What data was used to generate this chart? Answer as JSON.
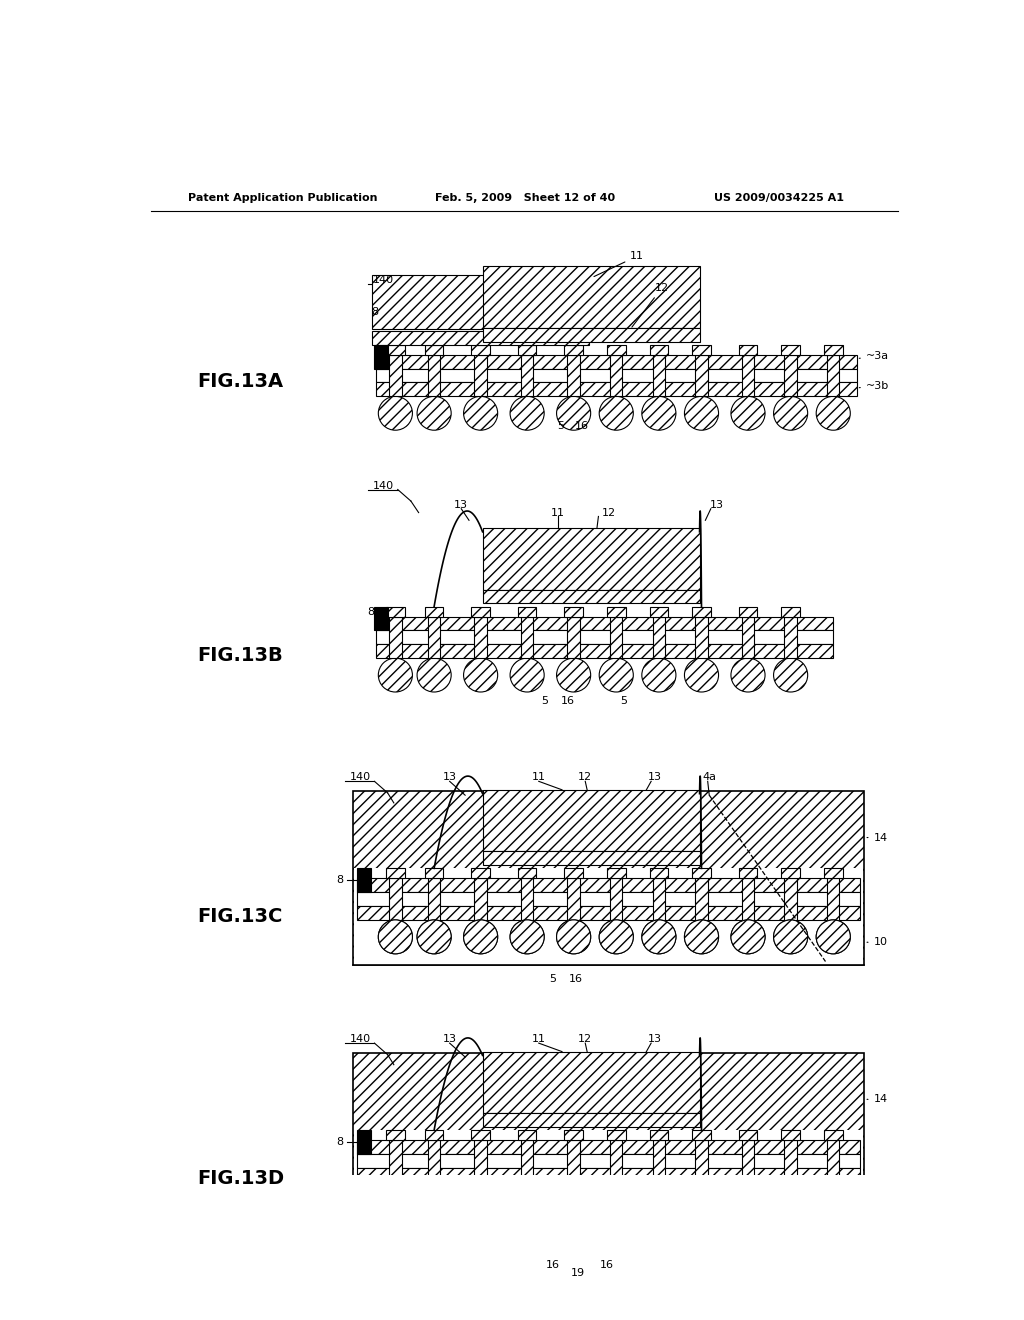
{
  "background_color": "#ffffff",
  "header_left": "Patent Application Publication",
  "header_mid": "Feb. 5, 2009   Sheet 12 of 40",
  "header_right": "US 2009/0034225 A1",
  "fig_labels": [
    "FIG.13A",
    "FIG.13B",
    "FIG.13C",
    "FIG.13D"
  ],
  "hatch_density": "///",
  "line_color": "#000000"
}
